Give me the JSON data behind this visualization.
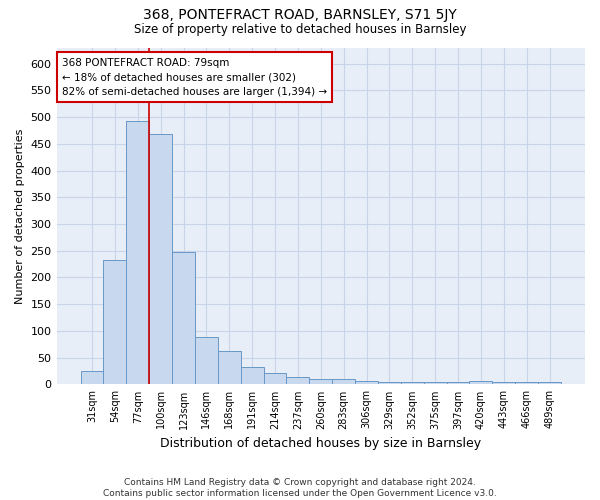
{
  "title": "368, PONTEFRACT ROAD, BARNSLEY, S71 5JY",
  "subtitle": "Size of property relative to detached houses in Barnsley",
  "xlabel": "Distribution of detached houses by size in Barnsley",
  "ylabel": "Number of detached properties",
  "footer_line1": "Contains HM Land Registry data © Crown copyright and database right 2024.",
  "footer_line2": "Contains public sector information licensed under the Open Government Licence v3.0.",
  "categories": [
    "31sqm",
    "54sqm",
    "77sqm",
    "100sqm",
    "123sqm",
    "146sqm",
    "168sqm",
    "191sqm",
    "214sqm",
    "237sqm",
    "260sqm",
    "283sqm",
    "306sqm",
    "329sqm",
    "352sqm",
    "375sqm",
    "397sqm",
    "420sqm",
    "443sqm",
    "466sqm",
    "489sqm"
  ],
  "values": [
    25,
    232,
    493,
    468,
    248,
    88,
    62,
    32,
    22,
    13,
    11,
    10,
    6,
    4,
    4,
    4,
    4,
    7,
    4,
    4,
    4
  ],
  "bar_color": "#c8d8ee",
  "bar_edge_color": "#6898c8",
  "grid_color": "#c8d4e8",
  "background_color": "#e8eef8",
  "vline_x": 2.5,
  "vline_color": "#cc0000",
  "annotation_text": "368 PONTEFRACT ROAD: 79sqm\n← 18% of detached houses are smaller (302)\n82% of semi-detached houses are larger (1,394) →",
  "annotation_box_color": "#ffffff",
  "annotation_box_edge_color": "#cc0000",
  "ylim": [
    0,
    630
  ],
  "yticks": [
    0,
    50,
    100,
    150,
    200,
    250,
    300,
    350,
    400,
    450,
    500,
    550,
    600
  ]
}
